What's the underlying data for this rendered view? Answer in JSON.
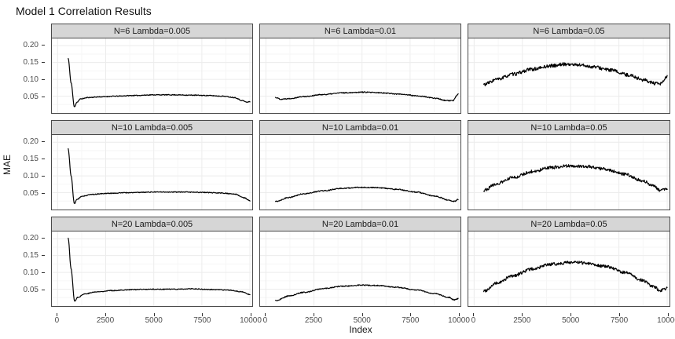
{
  "title": "Model 1 Correlation Results",
  "colors": {
    "strip_bg": "#d6d6d6",
    "panel_border": "#4a4a4a",
    "grid_major": "#ececec",
    "grid_minor": "#f6f6f6",
    "axis_text": "#4d4d4d",
    "line": "#000000"
  },
  "chart_data": {
    "type": "line",
    "title": "Model 1 Correlation Results",
    "xlabel": "Index",
    "ylabel": "MAE",
    "grid": "on",
    "legend": "none",
    "facet_grid": {
      "rows": [
        "N=6",
        "N=10",
        "N=20"
      ],
      "cols": [
        "Lambda=0.005",
        "Lambda=0.01",
        "Lambda=0.05"
      ]
    },
    "axes": {
      "x": {
        "label": "Index",
        "ticks": [
          0,
          2500,
          5000,
          7500,
          10000
        ],
        "tick_labels": [
          "0",
          "2500",
          "5000",
          "7500",
          "10000"
        ],
        "domain": [
          -300,
          10120
        ]
      },
      "y": {
        "label": "MAE",
        "ticks": [
          0.05,
          0.1,
          0.15,
          0.2
        ],
        "tick_labels": [
          "0.05",
          "0.10",
          "0.15",
          "0.20"
        ],
        "domain": [
          0,
          0.2215
        ]
      }
    },
    "facets": [
      {
        "label": "N=6 Lambda=0.005",
        "N": 6,
        "lambda": 0.005,
        "seed": 11,
        "noise": 0.0012,
        "points": [
          [
            550,
            0.162
          ],
          [
            700,
            0.09
          ],
          [
            870,
            0.018
          ],
          [
            1000,
            0.032
          ],
          [
            1200,
            0.042
          ],
          [
            1600,
            0.046
          ],
          [
            2200,
            0.048
          ],
          [
            3000,
            0.05
          ],
          [
            4000,
            0.052
          ],
          [
            5000,
            0.054
          ],
          [
            6000,
            0.054
          ],
          [
            7000,
            0.053
          ],
          [
            7800,
            0.052
          ],
          [
            8600,
            0.05
          ],
          [
            9200,
            0.046
          ],
          [
            9600,
            0.037
          ],
          [
            9850,
            0.032
          ],
          [
            10000,
            0.034
          ]
        ]
      },
      {
        "label": "N=6 Lambda=0.01",
        "N": 6,
        "lambda": 0.01,
        "seed": 22,
        "noise": 0.0015,
        "points": [
          [
            500,
            0.046
          ],
          [
            800,
            0.041
          ],
          [
            1200,
            0.043
          ],
          [
            2000,
            0.049
          ],
          [
            3000,
            0.055
          ],
          [
            4000,
            0.06
          ],
          [
            5000,
            0.062
          ],
          [
            6000,
            0.06
          ],
          [
            7000,
            0.056
          ],
          [
            8000,
            0.05
          ],
          [
            8800,
            0.044
          ],
          [
            9400,
            0.037
          ],
          [
            9700,
            0.036
          ],
          [
            10000,
            0.056
          ]
        ]
      },
      {
        "label": "N=6 Lambda=0.05",
        "N": 6,
        "lambda": 0.05,
        "seed": 33,
        "noise": 0.005,
        "points": [
          [
            500,
            0.085
          ],
          [
            1200,
            0.1
          ],
          [
            2000,
            0.115
          ],
          [
            3000,
            0.13
          ],
          [
            4000,
            0.14
          ],
          [
            4700,
            0.145
          ],
          [
            5400,
            0.143
          ],
          [
            6200,
            0.137
          ],
          [
            7000,
            0.128
          ],
          [
            8000,
            0.113
          ],
          [
            8800,
            0.098
          ],
          [
            9400,
            0.087
          ],
          [
            9650,
            0.086
          ],
          [
            10000,
            0.108
          ]
        ]
      },
      {
        "label": "N=10 Lambda=0.005",
        "N": 10,
        "lambda": 0.005,
        "seed": 44,
        "noise": 0.0012,
        "points": [
          [
            550,
            0.18
          ],
          [
            700,
            0.1
          ],
          [
            870,
            0.017
          ],
          [
            1000,
            0.03
          ],
          [
            1300,
            0.04
          ],
          [
            1800,
            0.045
          ],
          [
            2600,
            0.048
          ],
          [
            3600,
            0.05
          ],
          [
            5000,
            0.052
          ],
          [
            6500,
            0.052
          ],
          [
            7500,
            0.051
          ],
          [
            8500,
            0.049
          ],
          [
            9200,
            0.046
          ],
          [
            9700,
            0.035
          ],
          [
            10000,
            0.026
          ]
        ]
      },
      {
        "label": "N=10 Lambda=0.01",
        "N": 10,
        "lambda": 0.01,
        "seed": 55,
        "noise": 0.0015,
        "points": [
          [
            500,
            0.024
          ],
          [
            1200,
            0.036
          ],
          [
            2000,
            0.047
          ],
          [
            3000,
            0.056
          ],
          [
            4000,
            0.063
          ],
          [
            5000,
            0.066
          ],
          [
            5800,
            0.065
          ],
          [
            6800,
            0.06
          ],
          [
            7800,
            0.052
          ],
          [
            8800,
            0.04
          ],
          [
            9500,
            0.028
          ],
          [
            9800,
            0.024
          ],
          [
            10000,
            0.03
          ]
        ]
      },
      {
        "label": "N=10 Lambda=0.05",
        "N": 10,
        "lambda": 0.05,
        "seed": 66,
        "noise": 0.0045,
        "points": [
          [
            500,
            0.058
          ],
          [
            1200,
            0.077
          ],
          [
            2000,
            0.095
          ],
          [
            3000,
            0.113
          ],
          [
            4000,
            0.125
          ],
          [
            5000,
            0.13
          ],
          [
            5800,
            0.128
          ],
          [
            6800,
            0.12
          ],
          [
            7800,
            0.105
          ],
          [
            8700,
            0.086
          ],
          [
            9300,
            0.07
          ],
          [
            9650,
            0.057
          ],
          [
            10000,
            0.064
          ]
        ]
      },
      {
        "label": "N=20 Lambda=0.005",
        "N": 20,
        "lambda": 0.005,
        "seed": 77,
        "noise": 0.0012,
        "points": [
          [
            550,
            0.202
          ],
          [
            700,
            0.11
          ],
          [
            880,
            0.015
          ],
          [
            1050,
            0.026
          ],
          [
            1400,
            0.036
          ],
          [
            2000,
            0.042
          ],
          [
            2800,
            0.046
          ],
          [
            4000,
            0.049
          ],
          [
            5000,
            0.05
          ],
          [
            6000,
            0.05
          ],
          [
            7000,
            0.051
          ],
          [
            8000,
            0.049
          ],
          [
            9000,
            0.047
          ],
          [
            9600,
            0.042
          ],
          [
            10000,
            0.034
          ]
        ]
      },
      {
        "label": "N=20 Lambda=0.01",
        "N": 20,
        "lambda": 0.01,
        "seed": 88,
        "noise": 0.0015,
        "points": [
          [
            500,
            0.016
          ],
          [
            1200,
            0.03
          ],
          [
            2000,
            0.041
          ],
          [
            3000,
            0.052
          ],
          [
            4000,
            0.059
          ],
          [
            5000,
            0.062
          ],
          [
            5800,
            0.061
          ],
          [
            6800,
            0.056
          ],
          [
            7800,
            0.048
          ],
          [
            8800,
            0.037
          ],
          [
            9500,
            0.026
          ],
          [
            9800,
            0.018
          ],
          [
            10000,
            0.022
          ]
        ]
      },
      {
        "label": "N=20 Lambda=0.05",
        "N": 20,
        "lambda": 0.05,
        "seed": 99,
        "noise": 0.0045,
        "points": [
          [
            500,
            0.045
          ],
          [
            1200,
            0.068
          ],
          [
            2000,
            0.09
          ],
          [
            3000,
            0.11
          ],
          [
            4000,
            0.124
          ],
          [
            5000,
            0.13
          ],
          [
            5800,
            0.128
          ],
          [
            6800,
            0.118
          ],
          [
            7800,
            0.1
          ],
          [
            8700,
            0.077
          ],
          [
            9300,
            0.057
          ],
          [
            9650,
            0.046
          ],
          [
            10000,
            0.052
          ]
        ]
      }
    ]
  }
}
